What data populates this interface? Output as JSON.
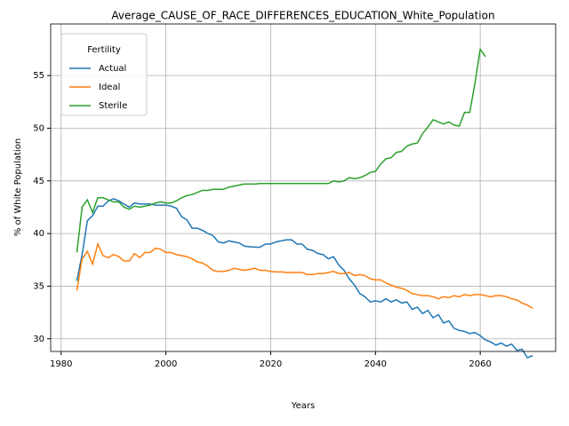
{
  "chart_data": {
    "type": "line",
    "title": "Average_CAUSE_OF_RACE_DIFFERENCES_EDUCATION_White_Population",
    "xlabel": "Years",
    "ylabel": "% of White Population",
    "legend_title": "Fertility",
    "legend": "upper left",
    "grid": true,
    "x": [
      1983,
      1984,
      1985,
      1986,
      1987,
      1988,
      1989,
      1990,
      1991,
      1992,
      1993,
      1994,
      1995,
      1996,
      1997,
      1998,
      1999,
      2000,
      2001,
      2002,
      2003,
      2004,
      2005,
      2006,
      2007,
      2008,
      2009,
      2010,
      2011,
      2012,
      2013,
      2014,
      2015,
      2016,
      2017,
      2018,
      2019,
      2020,
      2021,
      2022,
      2023,
      2024,
      2025,
      2026,
      2027,
      2028,
      2029,
      2030,
      2031,
      2032,
      2033,
      2034,
      2035,
      2036,
      2037,
      2038,
      2039,
      2040,
      2041,
      2042,
      2043,
      2044,
      2045,
      2046,
      2047,
      2048,
      2049,
      2050,
      2051,
      2052,
      2053,
      2054,
      2055,
      2056,
      2057,
      2058,
      2059,
      2060,
      2061,
      2062,
      2063,
      2064,
      2065,
      2066,
      2067,
      2068,
      2069,
      2070
    ],
    "series": [
      {
        "name": "Actual",
        "color": "#1f77b4",
        "values": [
          35.5,
          38.0,
          41.2,
          41.7,
          42.6,
          42.6,
          43.1,
          43.3,
          43.1,
          42.8,
          42.5,
          42.9,
          42.8,
          42.8,
          42.8,
          42.7,
          42.7,
          42.7,
          42.6,
          42.4,
          41.6,
          41.3,
          40.5,
          40.5,
          40.3,
          40.0,
          39.8,
          39.2,
          39.1,
          39.3,
          39.2,
          39.1,
          38.8,
          38.75,
          38.7,
          38.7,
          39.0,
          39.0,
          39.2,
          39.3,
          39.4,
          39.4,
          39.0,
          39.0,
          38.5,
          38.4,
          38.1,
          38.0,
          37.6,
          37.8,
          37.0,
          36.5,
          35.7,
          35.1,
          34.3,
          34.0,
          33.5,
          33.6,
          33.5,
          33.8,
          33.5,
          33.7,
          33.4,
          33.5,
          32.8,
          33.0,
          32.4,
          32.7,
          32.0,
          32.3,
          31.5,
          31.7,
          31.0,
          30.8,
          30.7,
          30.5,
          30.6,
          30.3,
          29.9,
          29.7,
          29.4,
          29.6,
          29.3,
          29.5,
          28.9,
          29.0,
          28.2,
          28.4
        ]
      },
      {
        "name": "Ideal",
        "color": "#ff7f0e",
        "values": [
          34.6,
          37.6,
          38.3,
          37.1,
          39.0,
          37.9,
          37.7,
          38.0,
          37.8,
          37.4,
          37.4,
          38.1,
          37.7,
          38.2,
          38.2,
          38.6,
          38.5,
          38.2,
          38.2,
          38.0,
          37.9,
          37.8,
          37.6,
          37.3,
          37.2,
          36.9,
          36.5,
          36.4,
          36.4,
          36.5,
          36.7,
          36.6,
          36.5,
          36.6,
          36.7,
          36.5,
          36.5,
          36.4,
          36.35,
          36.35,
          36.3,
          36.3,
          36.3,
          36.3,
          36.1,
          36.1,
          36.2,
          36.2,
          36.3,
          36.4,
          36.2,
          36.2,
          36.3,
          36.0,
          36.1,
          36.0,
          35.7,
          35.6,
          35.6,
          35.3,
          35.1,
          34.9,
          34.8,
          34.6,
          34.3,
          34.2,
          34.1,
          34.1,
          34.0,
          33.8,
          34.0,
          33.9,
          34.1,
          34.0,
          34.2,
          34.1,
          34.2,
          34.2,
          34.1,
          34.0,
          34.1,
          34.1,
          34.0,
          33.8,
          33.7,
          33.4,
          33.2,
          32.9
        ]
      },
      {
        "name": "Sterile",
        "color": "#2ca02c",
        "values": [
          38.2,
          42.5,
          43.2,
          42.0,
          43.4,
          43.4,
          43.2,
          43.0,
          43.0,
          42.5,
          42.3,
          42.6,
          42.5,
          42.6,
          42.7,
          42.9,
          43.0,
          42.9,
          42.9,
          43.1,
          43.4,
          43.6,
          43.7,
          43.9,
          44.1,
          44.1,
          44.2,
          44.2,
          44.2,
          44.4,
          44.5,
          44.6,
          44.7,
          44.7,
          44.7,
          44.75,
          44.75,
          44.75,
          44.75,
          44.75,
          44.75,
          44.75,
          44.75,
          44.75,
          44.75,
          44.75,
          44.75,
          44.75,
          44.75,
          45.0,
          44.9,
          45.0,
          45.3,
          45.2,
          45.3,
          45.5,
          45.8,
          45.9,
          46.6,
          47.1,
          47.2,
          47.7,
          47.8,
          48.3,
          48.5,
          48.6,
          49.5,
          50.1,
          50.8,
          50.6,
          50.4,
          50.6,
          50.3,
          50.2,
          51.5,
          51.5,
          54.3,
          57.5,
          56.8,
          null,
          null,
          null,
          null,
          null,
          null,
          null,
          null,
          null
        ]
      }
    ],
    "xlim": [
      1978.0,
      2074.4
    ],
    "xticks": [
      1980,
      2000,
      2020,
      2040,
      2060
    ],
    "ylim": [
      28.8,
      59.9
    ],
    "yticks": [
      30,
      35,
      40,
      45,
      50,
      55
    ]
  }
}
